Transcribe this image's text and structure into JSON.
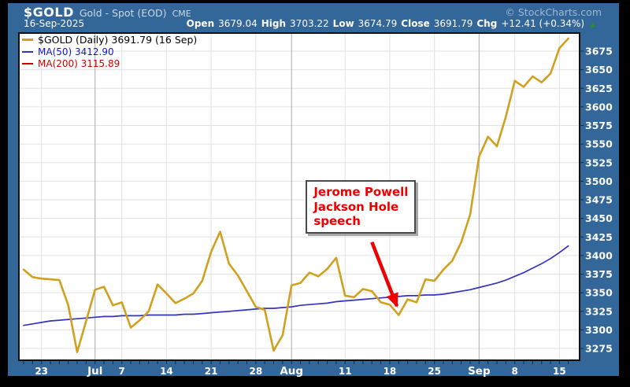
{
  "header": {
    "symbol": "$GOLD",
    "name": "Gold - Spot (EOD)",
    "exchange": "CME",
    "date": "16-Sep-2025",
    "copyright": "© StockCharts.com",
    "quote": {
      "open_label": "Open",
      "open": "3679.04",
      "high_label": "High",
      "high": "3703.22",
      "low_label": "Low",
      "low": "3674.79",
      "close_label": "Close",
      "close": "3691.79",
      "chg_label": "Chg",
      "chg": "+12.41 (+0.34%)",
      "chg_dir": "▲"
    }
  },
  "legend": {
    "main": "$GOLD (Daily) 3691.79 (16 Sep)",
    "ma50": "MA(50) 3412.90",
    "ma200": "MA(200) 3115.89"
  },
  "annotation": {
    "line1": "Jerome Powell",
    "line2": "Jackson Hole",
    "line3": "speech"
  },
  "colors": {
    "panel_blue": "#336699",
    "plot_bg": "#ffffff",
    "plot_border": "#101010",
    "grid": "#e2e2e2",
    "grid_month": "#ababab",
    "gold_line": "#d2a01f",
    "ma50_line": "#3333bb",
    "ma200_line": "#cc0000",
    "axis_text": "#ffffff",
    "day_tick": "#0e2a46",
    "annotation_red": "#ee0000",
    "up_green": "#2e8b2e"
  },
  "chart_data": {
    "type": "line",
    "title": "$GOLD Gold - Spot (EOD) CME",
    "x": [
      "19 Jun",
      "20 Jun",
      "23 Jun",
      "24 Jun",
      "25 Jun",
      "26 Jun",
      "27 Jun",
      "30 Jun",
      "1 Jul",
      "2 Jul",
      "3 Jul",
      "7 Jul",
      "8 Jul",
      "9 Jul",
      "10 Jul",
      "11 Jul",
      "14 Jul",
      "15 Jul",
      "16 Jul",
      "17 Jul",
      "18 Jul",
      "21 Jul",
      "22 Jul",
      "23 Jul",
      "24 Jul",
      "25 Jul",
      "28 Jul",
      "29 Jul",
      "30 Jul",
      "31 Jul",
      "1 Aug",
      "4 Aug",
      "5 Aug",
      "6 Aug",
      "7 Aug",
      "8 Aug",
      "11 Aug",
      "12 Aug",
      "13 Aug",
      "14 Aug",
      "15 Aug",
      "18 Aug",
      "19 Aug",
      "20 Aug",
      "21 Aug",
      "22 Aug",
      "25 Aug",
      "26 Aug",
      "27 Aug",
      "28 Aug",
      "29 Aug",
      "2 Sep",
      "3 Sep",
      "4 Sep",
      "5 Sep",
      "8 Sep",
      "9 Sep",
      "10 Sep",
      "11 Sep",
      "12 Sep",
      "15 Sep",
      "16 Sep"
    ],
    "series": [
      {
        "name": "$GOLD (Daily)",
        "color_key": "gold_line",
        "width": 2.6,
        "values": [
          3381,
          3371,
          3369,
          3368,
          3367,
          3333,
          3270,
          3312,
          3354,
          3358,
          3333,
          3337,
          3303,
          3313,
          3325,
          3361,
          3349,
          3336,
          3342,
          3349,
          3366,
          3405,
          3432,
          3389,
          3373,
          3352,
          3331,
          3327,
          3272,
          3293,
          3360,
          3363,
          3377,
          3372,
          3382,
          3397,
          3346,
          3344,
          3355,
          3352,
          3337,
          3334,
          3320,
          3341,
          3337,
          3368,
          3366,
          3381,
          3393,
          3418,
          3455,
          3533,
          3560,
          3547,
          3587,
          3635,
          3627,
          3641,
          3633,
          3645,
          3679,
          3692
        ]
      },
      {
        "name": "MA(50)",
        "color_key": "ma50_line",
        "width": 1.7,
        "values": [
          3306,
          3308,
          3310,
          3312,
          3313,
          3314,
          3315,
          3316,
          3317,
          3318,
          3318,
          3319,
          3319,
          3319,
          3320,
          3320,
          3320,
          3320,
          3321,
          3321,
          3322,
          3323,
          3324,
          3325,
          3326,
          3327,
          3328,
          3329,
          3329,
          3330,
          3331,
          3333,
          3334,
          3335,
          3336,
          3338,
          3339,
          3340,
          3341,
          3342,
          3343,
          3344,
          3345,
          3346,
          3346,
          3347,
          3347,
          3348,
          3350,
          3352,
          3354,
          3357,
          3360,
          3363,
          3367,
          3372,
          3377,
          3383,
          3389,
          3396,
          3404,
          3413
        ]
      }
    ],
    "off_scale_series": [
      {
        "name": "MA(200)",
        "color_key": "ma200_line",
        "last_value": 3115.89,
        "in_visible_range": false
      }
    ],
    "y_ticks": [
      3275,
      3300,
      3325,
      3350,
      3375,
      3400,
      3425,
      3450,
      3475,
      3500,
      3525,
      3550,
      3575,
      3600,
      3625,
      3650,
      3675
    ],
    "ylim": [
      3259,
      3699
    ],
    "x_ticks": [
      {
        "i": 2,
        "label": "23"
      },
      {
        "i": 8,
        "label": "Jul",
        "month": true
      },
      {
        "i": 11,
        "label": "7"
      },
      {
        "i": 16,
        "label": "14"
      },
      {
        "i": 21,
        "label": "21"
      },
      {
        "i": 26,
        "label": "28"
      },
      {
        "i": 30,
        "label": "Aug",
        "month": true
      },
      {
        "i": 36,
        "label": "11"
      },
      {
        "i": 41,
        "label": "18"
      },
      {
        "i": 46,
        "label": "25"
      },
      {
        "i": 51,
        "label": "Sep",
        "month": true
      },
      {
        "i": 55,
        "label": "8"
      },
      {
        "i": 60,
        "label": "15"
      }
    ],
    "grid": true,
    "legend_position": "top-left",
    "annotation": {
      "lines": [
        "Jerome Powell",
        "Jackson Hole",
        "speech"
      ],
      "box_anchor": {
        "i": 31.6,
        "v": 3501
      },
      "arrow_from": {
        "i": 39.0,
        "v": 3418
      },
      "arrow_to": {
        "i": 41.8,
        "v": 3332
      }
    }
  }
}
